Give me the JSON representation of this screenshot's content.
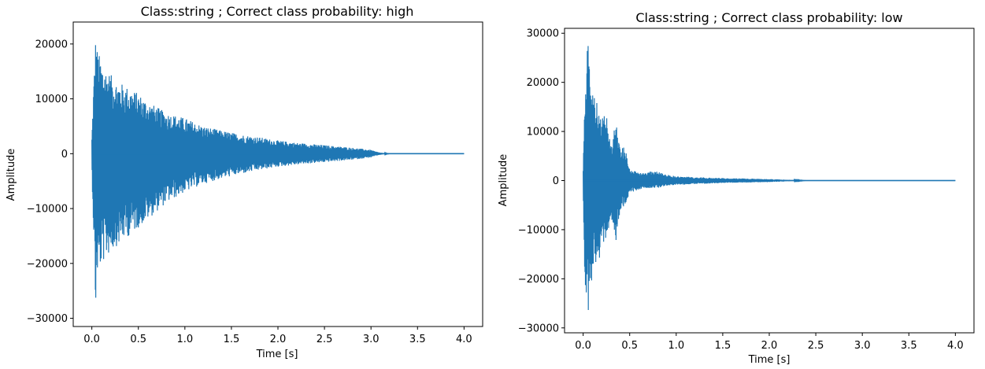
{
  "figure": {
    "background": "#ffffff",
    "line_color": "#1f77b4"
  },
  "chart_data": [
    {
      "type": "line",
      "title": "Class:string ; Correct class probability: high",
      "xlabel": "Time [s]",
      "ylabel": "Amplitude",
      "xlim": [
        -0.2,
        4.2
      ],
      "ylim": [
        -31500,
        24000
      ],
      "xticks": [
        0.0,
        0.5,
        1.0,
        1.5,
        2.0,
        2.5,
        3.0,
        3.5,
        4.0
      ],
      "xtick_labels": [
        "0.0",
        "0.5",
        "1.0",
        "1.5",
        "2.0",
        "2.5",
        "3.0",
        "3.5",
        "4.0"
      ],
      "yticks": [
        -30000,
        -20000,
        -10000,
        0,
        10000,
        20000
      ],
      "ytick_labels": [
        "−30000",
        "−20000",
        "−10000",
        "0",
        "10000",
        "20000"
      ],
      "series": [
        {
          "envelope_upper": {
            "x": [
              0.0,
              0.02,
              0.04,
              0.06,
              0.1,
              0.15,
              0.2,
              0.25,
              0.3,
              0.35,
              0.4,
              0.5,
              0.6,
              0.7,
              0.8,
              1.0,
              1.2,
              1.4,
              1.6,
              1.8,
              2.0,
              2.2,
              2.4,
              2.6,
              2.8,
              3.0,
              3.05,
              3.1,
              3.15,
              3.2,
              4.0
            ],
            "y": [
              3000,
              13000,
              21000,
              19000,
              17000,
              15500,
              14500,
              13500,
              13000,
              12500,
              12000,
              11000,
              9500,
              8500,
              7500,
              6500,
              5000,
              4200,
              3500,
              3000,
              2400,
              2000,
              1700,
              1400,
              1100,
              700,
              400,
              200,
              80,
              0,
              0
            ]
          },
          "envelope_lower": {
            "x": [
              0.0,
              0.02,
              0.04,
              0.06,
              0.1,
              0.15,
              0.2,
              0.25,
              0.3,
              0.35,
              0.4,
              0.5,
              0.6,
              0.7,
              0.8,
              1.0,
              1.2,
              1.4,
              1.6,
              1.8,
              2.0,
              2.2,
              2.4,
              2.6,
              2.8,
              3.0,
              3.05,
              3.1,
              3.15,
              3.2,
              4.0
            ],
            "y": [
              -3000,
              -15000,
              -29000,
              -22000,
              -20500,
              -19000,
              -18000,
              -17000,
              -16500,
              -15500,
              -15000,
              -13500,
              -12000,
              -10500,
              -9000,
              -7000,
              -5500,
              -4500,
              -3700,
              -3000,
              -2400,
              -2000,
              -1700,
              -1400,
              -1100,
              -700,
              -400,
              -200,
              -80,
              0,
              0
            ]
          }
        }
      ]
    },
    {
      "type": "line",
      "title": "Class:string ; Correct class probability: low",
      "xlabel": "Time [s]",
      "ylabel": "Amplitude",
      "xlim": [
        -0.2,
        4.2
      ],
      "ylim": [
        -31000,
        31000
      ],
      "xticks": [
        0.0,
        0.5,
        1.0,
        1.5,
        2.0,
        2.5,
        3.0,
        3.5,
        4.0
      ],
      "xtick_labels": [
        "0.0",
        "0.5",
        "1.0",
        "1.5",
        "2.0",
        "2.5",
        "3.0",
        "3.5",
        "4.0"
      ],
      "yticks": [
        -30000,
        -20000,
        -10000,
        0,
        10000,
        20000,
        30000
      ],
      "ytick_labels": [
        "−30000",
        "−20000",
        "−10000",
        "0",
        "10000",
        "20000",
        "30000"
      ],
      "series": [
        {
          "envelope_upper": {
            "x": [
              0.0,
              0.02,
              0.05,
              0.08,
              0.12,
              0.15,
              0.2,
              0.25,
              0.3,
              0.35,
              0.4,
              0.45,
              0.5,
              0.6,
              0.7,
              0.8,
              0.9,
              1.0,
              1.2,
              1.5,
              1.8,
              2.0,
              2.2,
              2.4,
              4.0
            ],
            "y": [
              2000,
              23000,
              28500,
              20000,
              17000,
              18000,
              12000,
              16000,
              7000,
              13000,
              6500,
              7000,
              2500,
              1500,
              1800,
              2000,
              1200,
              900,
              700,
              500,
              400,
              300,
              150,
              0,
              0
            ]
          },
          "envelope_lower": {
            "x": [
              0.0,
              0.02,
              0.05,
              0.08,
              0.12,
              0.15,
              0.2,
              0.25,
              0.3,
              0.35,
              0.4,
              0.45,
              0.5,
              0.6,
              0.7,
              0.8,
              0.9,
              1.0,
              1.2,
              1.5,
              1.8,
              2.0,
              2.2,
              2.4,
              4.0
            ],
            "y": [
              -2000,
              -25000,
              -28500,
              -22000,
              -18000,
              -19000,
              -13000,
              -12000,
              -7000,
              -13000,
              -6000,
              -5000,
              -2500,
              -1800,
              -1500,
              -1500,
              -1000,
              -900,
              -700,
              -500,
              -400,
              -300,
              -150,
              0,
              0
            ]
          }
        }
      ]
    }
  ]
}
